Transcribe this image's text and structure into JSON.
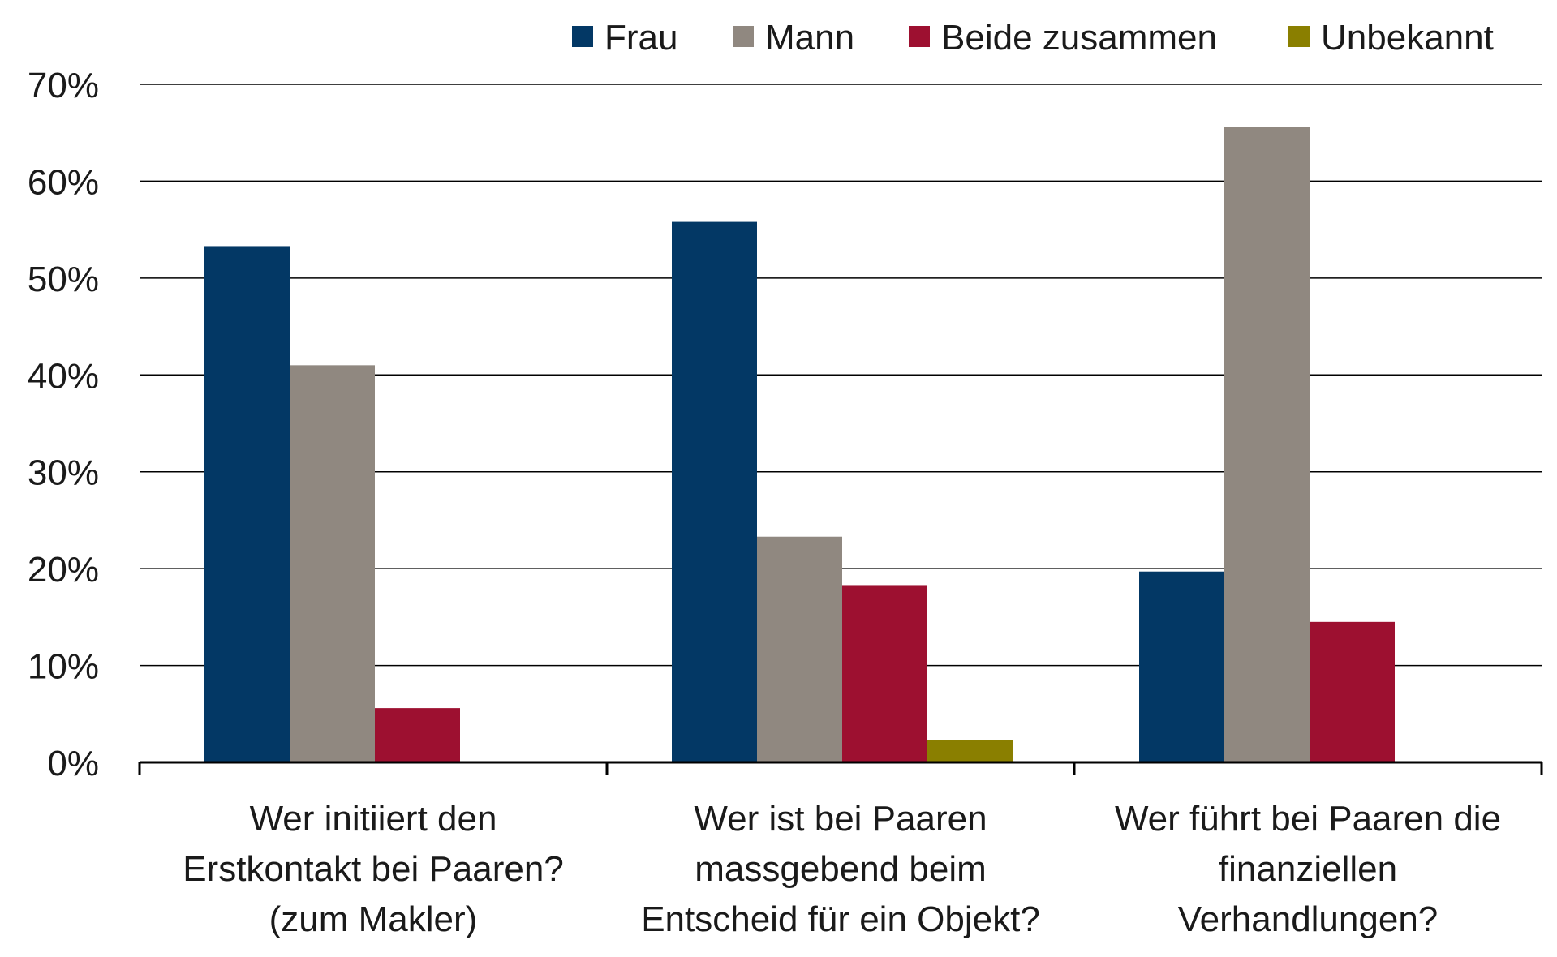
{
  "chart_data": {
    "type": "bar",
    "title": "",
    "xlabel": "",
    "ylabel": "",
    "ylim": [
      0,
      70
    ],
    "y_ticks": [
      0,
      10,
      20,
      30,
      40,
      50,
      60,
      70
    ],
    "y_tick_format": "{v}%",
    "grid": true,
    "legend_position": "top-right",
    "categories": [
      [
        "Wer initiiert den",
        "Erstkontakt bei Paaren?",
        "(zum Makler)"
      ],
      [
        "Wer ist bei Paaren",
        "massgebend beim",
        "Entscheid für ein Objekt?"
      ],
      [
        "Wer führt bei Paaren die",
        "finanziellen",
        "Verhandlungen?"
      ]
    ],
    "series": [
      {
        "name": "Frau",
        "color": "#033865",
        "values": [
          53.3,
          55.8,
          19.7
        ]
      },
      {
        "name": "Mann",
        "color": "#908880",
        "values": [
          41.0,
          23.3,
          65.6
        ]
      },
      {
        "name": "Beide zusammen",
        "color": "#9D1030",
        "values": [
          5.6,
          18.3,
          14.5
        ]
      },
      {
        "name": "Unbekannt",
        "color": "#8A7F00",
        "values": [
          0,
          2.3,
          0
        ]
      }
    ]
  }
}
